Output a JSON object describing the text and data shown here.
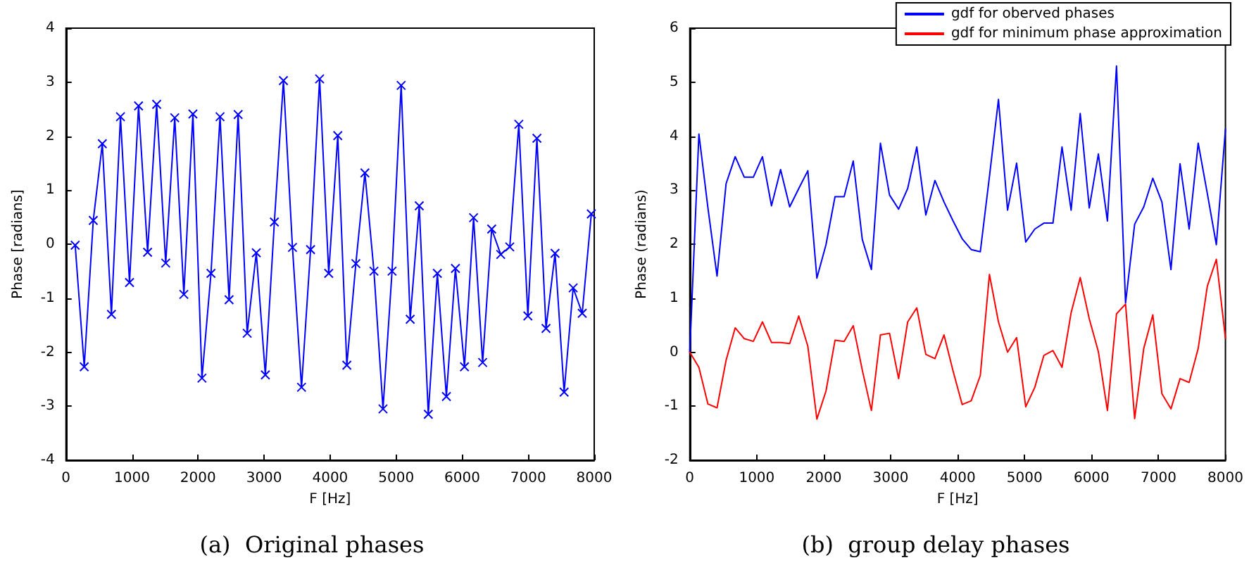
{
  "chart_data": [
    {
      "type": "line",
      "title": "(a)  Original phases",
      "xlabel": "F [Hz]",
      "ylabel": "Phase [radians]",
      "xlim": [
        0,
        8000
      ],
      "xticks": [
        0,
        1000,
        2000,
        3000,
        4000,
        5000,
        6000,
        7000,
        8000
      ],
      "ylim": [
        -4,
        4
      ],
      "yticks": [
        -4,
        -3,
        -2,
        -1,
        0,
        1,
        2,
        3,
        4
      ],
      "marker": "cross",
      "grid": false,
      "legend": false,
      "x": [
        139,
        276,
        413,
        550,
        688,
        825,
        962,
        1099,
        1236,
        1373,
        1510,
        1647,
        1785,
        1922,
        2059,
        2196,
        2333,
        2470,
        2607,
        2744,
        2882,
        3019,
        3156,
        3293,
        3430,
        3567,
        3704,
        3841,
        3979,
        4116,
        4253,
        4390,
        4527,
        4664,
        4801,
        4938,
        5076,
        5213,
        5350,
        5487,
        5624,
        5761,
        5898,
        6035,
        6173,
        6310,
        6447,
        6584,
        6721,
        6858,
        6995,
        7132,
        7270,
        7407,
        7544,
        7681,
        7818,
        7956
      ],
      "series": [
        {
          "color": "#0000ff",
          "values": [
            -0.02,
            -2.27,
            0.44,
            1.86,
            -1.3,
            2.36,
            -0.71,
            2.56,
            -0.15,
            2.59,
            -0.35,
            2.34,
            -0.93,
            2.41,
            -2.48,
            -0.54,
            2.36,
            -1.03,
            2.4,
            -1.65,
            -0.16,
            -2.42,
            0.41,
            3.03,
            -0.06,
            -2.65,
            -0.1,
            3.06,
            -0.54,
            2.01,
            -2.24,
            -0.36,
            1.32,
            -0.5,
            -3.05,
            -0.5,
            2.94,
            -1.39,
            0.71,
            -3.15,
            -0.54,
            -2.82,
            -0.45,
            -2.27,
            0.49,
            -2.19,
            0.28,
            -0.19,
            -0.05,
            2.22,
            -1.33,
            1.96,
            -1.56,
            -0.17,
            -2.74,
            -0.81,
            -1.28,
            0.56
          ]
        }
      ]
    },
    {
      "type": "line",
      "title": "(b)  group delay phases",
      "xlabel": "F [Hz]",
      "ylabel": "Phase (radians)",
      "xlim": [
        0,
        8000
      ],
      "xticks": [
        0,
        1000,
        2000,
        3000,
        4000,
        5000,
        6000,
        7000,
        8000
      ],
      "ylim": [
        -2,
        6
      ],
      "yticks": [
        -2,
        -1,
        0,
        1,
        2,
        3,
        4,
        5,
        6
      ],
      "marker": "none",
      "grid": false,
      "legend": "top right",
      "x": [
        0,
        136,
        271,
        407,
        542,
        678,
        814,
        949,
        1085,
        1220,
        1356,
        1492,
        1627,
        1763,
        1898,
        2034,
        2169,
        2305,
        2441,
        2576,
        2712,
        2847,
        2983,
        3119,
        3254,
        3390,
        3525,
        3661,
        3797,
        3932,
        4068,
        4203,
        4339,
        4475,
        4610,
        4746,
        4881,
        5017,
        5153,
        5288,
        5424,
        5559,
        5695,
        5831,
        5966,
        6102,
        6237,
        6373,
        6508,
        6644,
        6780,
        6915,
        7051,
        7186,
        7322,
        7458,
        7593,
        7729,
        7864,
        8000
      ],
      "series": [
        {
          "name": "gdf for oberved phases",
          "color": "#0000ff",
          "values": [
            0,
            4.04,
            2.67,
            1.41,
            3.12,
            3.62,
            3.24,
            3.24,
            3.62,
            2.71,
            3.38,
            2.69,
            3.03,
            3.36,
            1.37,
            1.99,
            2.88,
            2.88,
            3.54,
            2.09,
            1.53,
            3.87,
            2.91,
            2.65,
            3.03,
            3.8,
            2.54,
            3.18,
            2.78,
            2.43,
            2.1,
            1.9,
            1.86,
            3.25,
            4.68,
            2.63,
            3.5,
            2.04,
            2.28,
            2.39,
            2.39,
            3.8,
            2.63,
            4.42,
            2.67,
            3.67,
            2.43,
            5.3,
            0.91,
            2.37,
            2.69,
            3.22,
            2.78,
            1.53,
            3.49,
            2.28,
            3.87,
            2.94,
            1.99,
            4.13
          ]
        },
        {
          "name": "gdf for minimum phase approximation",
          "color": "#ff0000",
          "values": [
            0,
            -0.28,
            -0.96,
            -1.03,
            -0.15,
            0.45,
            0.25,
            0.2,
            0.56,
            0.18,
            0.18,
            0.16,
            0.67,
            0.11,
            -1.24,
            -0.72,
            0.22,
            0.2,
            0.49,
            -0.33,
            -1.08,
            0.32,
            0.35,
            -0.49,
            0.56,
            0.82,
            -0.04,
            -0.12,
            0.32,
            -0.35,
            -0.97,
            -0.9,
            -0.43,
            1.44,
            0.56,
            0.0,
            0.27,
            -1.01,
            -0.65,
            -0.06,
            0.03,
            -0.28,
            0.73,
            1.38,
            0.62,
            0.01,
            -1.08,
            0.71,
            0.89,
            -1.23,
            0.07,
            0.69,
            -0.77,
            -1.05,
            -0.49,
            -0.56,
            0.07,
            1.22,
            1.72,
            0.26
          ]
        }
      ]
    }
  ]
}
